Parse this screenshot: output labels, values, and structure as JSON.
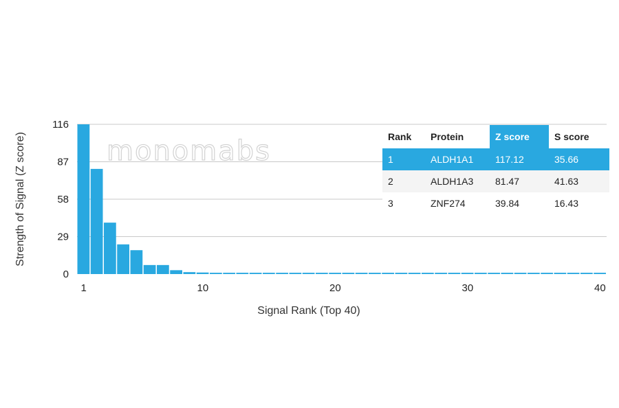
{
  "chart_data": {
    "type": "bar",
    "xlabel": "Signal Rank (Top 40)",
    "ylabel": "Strength of Signal (Z score)",
    "x": [
      1,
      2,
      3,
      4,
      5,
      6,
      7,
      8,
      9,
      10,
      11,
      12,
      13,
      14,
      15,
      16,
      17,
      18,
      19,
      20,
      21,
      22,
      23,
      24,
      25,
      26,
      27,
      28,
      29,
      30,
      31,
      32,
      33,
      34,
      35,
      36,
      37,
      38,
      39,
      40
    ],
    "values": [
      117.12,
      81.47,
      39.84,
      23,
      18.5,
      7,
      7,
      3,
      1.5,
      1.2,
      1,
      1,
      1,
      1,
      1,
      1,
      1,
      1,
      1,
      1,
      1,
      1,
      1,
      1,
      1,
      1,
      1,
      1,
      1,
      1,
      1,
      1,
      1,
      1,
      1,
      1,
      1,
      1,
      1,
      1
    ],
    "yticks": [
      0,
      29,
      58,
      87,
      116
    ],
    "xticks": [
      1,
      10,
      20,
      30,
      40
    ],
    "ylim": [
      0,
      116
    ],
    "xlim": [
      1,
      41
    ],
    "grid": true,
    "bar_color": "#29a8e0"
  },
  "watermark": "monomabs",
  "table": {
    "headers": [
      "Rank",
      "Protein",
      "Z score",
      "S score"
    ],
    "rows": [
      [
        "1",
        "ALDH1A1",
        "117.12",
        "35.66"
      ],
      [
        "2",
        "ALDH1A3",
        "81.47",
        "41.63"
      ],
      [
        "3",
        "ZNF274",
        "39.84",
        "16.43"
      ]
    ],
    "highlight_color": "#29a8e0"
  }
}
